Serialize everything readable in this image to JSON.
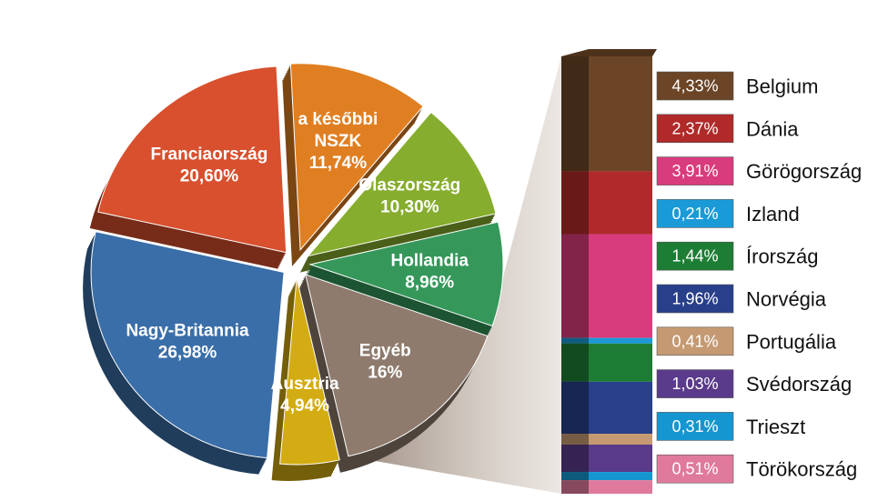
{
  "chart_data": [
    {
      "type": "pie",
      "slices": [
        {
          "label": "Nagy-Britannia",
          "value_label": "26,98%",
          "value": 26.98,
          "color": "#3a6ea8"
        },
        {
          "label": "Franciaország",
          "value_label": "20,60%",
          "value": 20.6,
          "color": "#d8502e"
        },
        {
          "label": "a későbbi NSZK",
          "value_label": "11,74%",
          "value": 11.74,
          "color": "#e07f22"
        },
        {
          "label": "Olaszország",
          "value_label": "10,30%",
          "value": 10.3,
          "color": "#86ad2e"
        },
        {
          "label": "Hollandia",
          "value_label": "8,96%",
          "value": 8.96,
          "color": "#35985a"
        },
        {
          "label": "Egyéb",
          "value_label": "16%",
          "value": 16,
          "color": "#8e7b6d"
        },
        {
          "label": "Ausztria",
          "value_label": "4,94%",
          "value": 4.94,
          "color": "#d2ac12"
        }
      ]
    },
    {
      "type": "bar",
      "stacked": true,
      "categories": [
        "Belgium",
        "Dánia",
        "Görögország",
        "Izland",
        "Írország",
        "Norvégia",
        "Portugália",
        "Svédország",
        "Trieszt",
        "Törökország"
      ],
      "value_labels": [
        "4,33%",
        "2,37%",
        "3,91%",
        "0,21%",
        "1,44%",
        "1,96%",
        "0,41%",
        "1,03%",
        "0,31%",
        "0,51%"
      ],
      "values": [
        4.33,
        2.37,
        3.91,
        0.21,
        1.44,
        1.96,
        0.41,
        1.03,
        0.31,
        0.51
      ],
      "colors": [
        "#6b4526",
        "#b02a2a",
        "#d83c7c",
        "#1a9ad6",
        "#1e7d34",
        "#283f8a",
        "#c59a72",
        "#5a3a8a",
        "#1596d0",
        "#e07a9c"
      ],
      "legend_position": "right"
    }
  ]
}
